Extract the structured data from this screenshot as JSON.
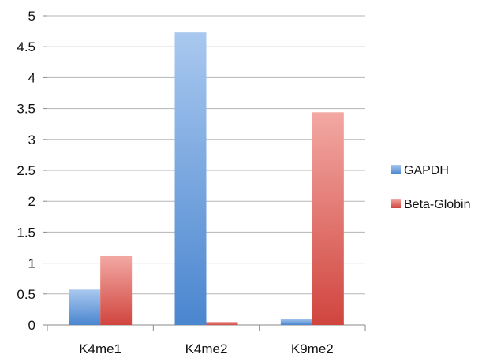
{
  "chart_data": {
    "type": "bar",
    "title": "",
    "xlabel": "",
    "ylabel": "",
    "ylim": [
      0,
      5
    ],
    "yticks": [
      0,
      0.5,
      1,
      1.5,
      2,
      2.5,
      3,
      3.5,
      4,
      4.5,
      5
    ],
    "ytick_labels": [
      "0",
      "0.5",
      "1",
      "1.5",
      "2",
      "2.5",
      "3",
      "3.5",
      "4",
      "4.5",
      "5"
    ],
    "categories": [
      "K4me1",
      "K4me2",
      "K9me2"
    ],
    "grid": true,
    "legend": "right",
    "series": [
      {
        "name": "GAPDH",
        "values": [
          0.57,
          4.73,
          0.1
        ],
        "color": "#4a86cf",
        "color_light": "#a9c8ef"
      },
      {
        "name": "Beta-Globin",
        "values": [
          1.11,
          0.05,
          3.44
        ],
        "color": "#d0453e",
        "color_light": "#f3a8a3"
      }
    ]
  }
}
